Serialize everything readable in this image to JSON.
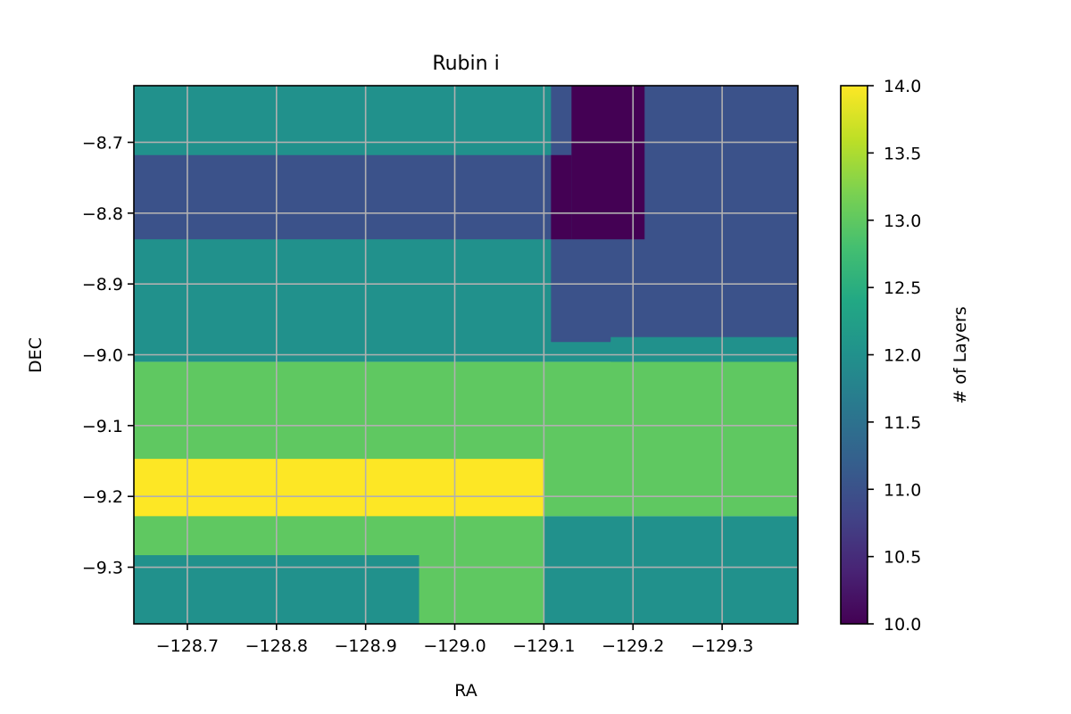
{
  "chart_data": {
    "type": "heatmap",
    "title": "Rubin i",
    "xlabel": "RA",
    "ylabel": "DEC",
    "xlim": [
      -128.64,
      -129.385
    ],
    "ylim": [
      -9.38,
      -8.62
    ],
    "x_ticks": [
      -128.7,
      -128.8,
      -128.9,
      -129.0,
      -129.1,
      -129.2,
      -129.3
    ],
    "x_tick_labels": [
      "−128.7",
      "−128.8",
      "−128.9",
      "−129.0",
      "−129.1",
      "−129.2",
      "−129.3"
    ],
    "y_ticks": [
      -8.7,
      -8.8,
      -8.9,
      -9.0,
      -9.1,
      -9.2,
      -9.3
    ],
    "y_tick_labels": [
      "−8.7",
      "−8.8",
      "−8.9",
      "−9.0",
      "−9.1",
      "−9.2",
      "−9.3"
    ],
    "grid": true,
    "colormap": "viridis",
    "colorbar": {
      "label": "# of Layers",
      "range": [
        10.0,
        14.0
      ],
      "ticks": [
        10.0,
        10.5,
        11.0,
        11.5,
        12.0,
        12.5,
        13.0,
        13.5,
        14.0
      ],
      "tick_labels": [
        "10.0",
        "10.5",
        "11.0",
        "11.5",
        "12.0",
        "12.5",
        "13.0",
        "13.5",
        "14.0"
      ]
    },
    "regions": [
      {
        "ra": [
          -128.64,
          -129.385
        ],
        "dec": [
          -8.62,
          -9.01
        ],
        "value": 12
      },
      {
        "ra": [
          -128.64,
          -129.385
        ],
        "dec": [
          -8.718,
          -8.837
        ],
        "value": 11
      },
      {
        "ra": [
          -129.108,
          -129.385
        ],
        "dec": [
          -8.62,
          -8.98
        ],
        "value": 11
      },
      {
        "ra": [
          -129.108,
          -129.175
        ],
        "dec": [
          -8.978,
          -8.982
        ],
        "value": 11
      },
      {
        "ra": [
          -129.175,
          -129.385
        ],
        "dec": [
          -8.975,
          -9.01
        ],
        "value": 12
      },
      {
        "ra": [
          -129.131,
          -129.213
        ],
        "dec": [
          -8.62,
          -8.837
        ],
        "value": 10
      },
      {
        "ra": [
          -129.108,
          -129.131
        ],
        "dec": [
          -8.718,
          -8.837
        ],
        "value": 10
      },
      {
        "ra": [
          -128.64,
          -129.385
        ],
        "dec": [
          -9.01,
          -9.228
        ],
        "value": 13
      },
      {
        "ra": [
          -128.64,
          -129.1
        ],
        "dec": [
          -9.147,
          -9.228
        ],
        "value": 14
      },
      {
        "ra": [
          -128.64,
          -129.1
        ],
        "dec": [
          -9.228,
          -9.38
        ],
        "value": 13
      },
      {
        "ra": [
          -128.64,
          -128.96
        ],
        "dec": [
          -9.283,
          -9.38
        ],
        "value": 12
      },
      {
        "ra": [
          -129.1,
          -129.385
        ],
        "dec": [
          -9.228,
          -9.38
        ],
        "value": 12
      }
    ]
  }
}
